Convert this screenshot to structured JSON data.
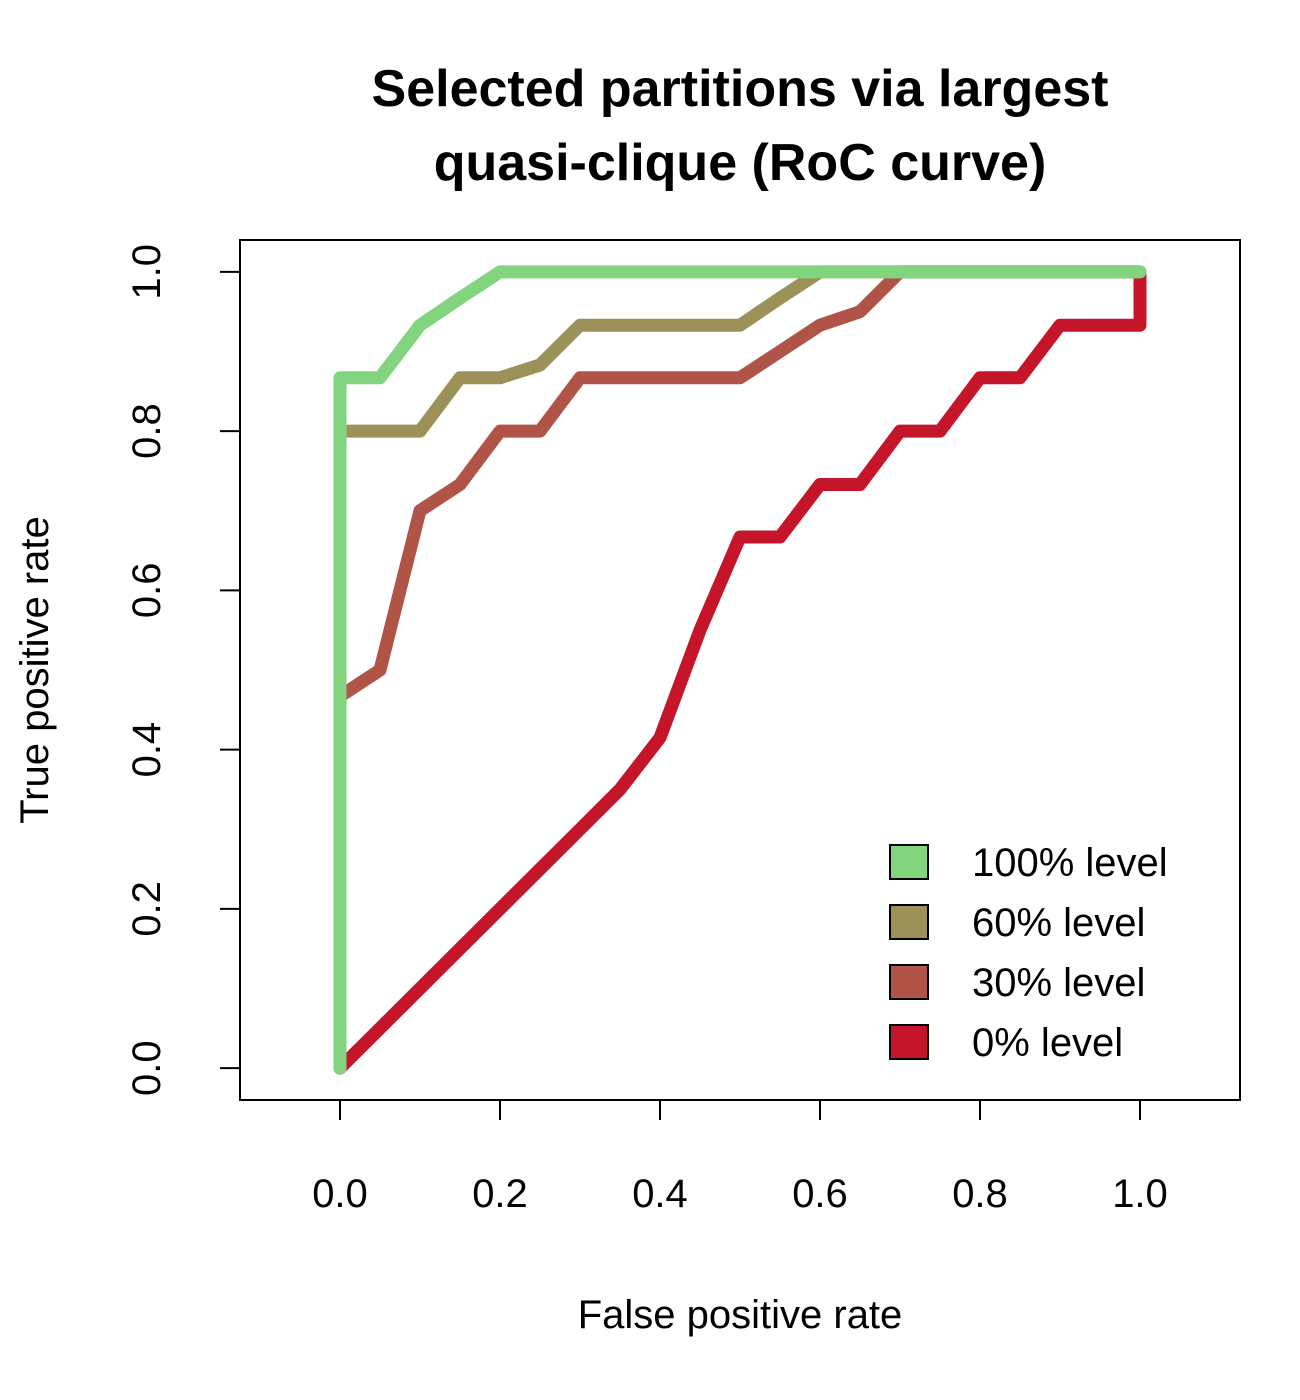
{
  "chart_data": {
    "type": "line",
    "title_lines": [
      "Selected partitions via largest",
      "quasi-clique (RoC curve)"
    ],
    "xlabel": "False positive rate",
    "ylabel": "True positive rate",
    "xlim": [
      -0.125,
      1.125
    ],
    "ylim": [
      -0.04,
      1.04
    ],
    "x_ticks": [
      "0.0",
      "0.2",
      "0.4",
      "0.6",
      "0.8",
      "1.0"
    ],
    "y_ticks": [
      "0.0",
      "0.2",
      "0.4",
      "0.6",
      "0.8",
      "1.0"
    ],
    "grid": false,
    "legend_position": "bottom-right",
    "series": [
      {
        "name": "0% level",
        "color": "#C4152A",
        "points": [
          [
            0,
            0
          ],
          [
            0.1,
            0.1
          ],
          [
            0.2,
            0.2
          ],
          [
            0.3,
            0.3
          ],
          [
            0.35,
            0.35
          ],
          [
            0.4,
            0.415
          ],
          [
            0.45,
            0.55
          ],
          [
            0.5,
            0.667
          ],
          [
            0.55,
            0.667
          ],
          [
            0.6,
            0.733
          ],
          [
            0.65,
            0.733
          ],
          [
            0.7,
            0.8
          ],
          [
            0.75,
            0.8
          ],
          [
            0.8,
            0.867
          ],
          [
            0.85,
            0.867
          ],
          [
            0.9,
            0.933
          ],
          [
            0.95,
            0.933
          ],
          [
            1.0,
            0.933
          ],
          [
            1.0,
            1.0
          ]
        ]
      },
      {
        "name": "30% level",
        "color": "#B05448",
        "points": [
          [
            0,
            0
          ],
          [
            0,
            0.467
          ],
          [
            0.05,
            0.5
          ],
          [
            0.1,
            0.7
          ],
          [
            0.15,
            0.733
          ],
          [
            0.2,
            0.8
          ],
          [
            0.25,
            0.8
          ],
          [
            0.3,
            0.867
          ],
          [
            0.35,
            0.867
          ],
          [
            0.4,
            0.867
          ],
          [
            0.45,
            0.867
          ],
          [
            0.5,
            0.867
          ],
          [
            0.55,
            0.9
          ],
          [
            0.6,
            0.933
          ],
          [
            0.65,
            0.95
          ],
          [
            0.7,
            1.0
          ],
          [
            1.0,
            1.0
          ]
        ]
      },
      {
        "name": "60% level",
        "color": "#9C9158",
        "points": [
          [
            0,
            0
          ],
          [
            0,
            0.8
          ],
          [
            0.05,
            0.8
          ],
          [
            0.1,
            0.8
          ],
          [
            0.15,
            0.867
          ],
          [
            0.2,
            0.867
          ],
          [
            0.25,
            0.883
          ],
          [
            0.3,
            0.933
          ],
          [
            0.35,
            0.933
          ],
          [
            0.4,
            0.933
          ],
          [
            0.45,
            0.933
          ],
          [
            0.5,
            0.933
          ],
          [
            0.55,
            0.967
          ],
          [
            0.6,
            1.0
          ],
          [
            1.0,
            1.0
          ]
        ]
      },
      {
        "name": "100% level",
        "color": "#82D47E",
        "points": [
          [
            0,
            0
          ],
          [
            0,
            0.867
          ],
          [
            0.05,
            0.867
          ],
          [
            0.1,
            0.933
          ],
          [
            0.15,
            0.967
          ],
          [
            0.2,
            1.0
          ],
          [
            1.0,
            1.0
          ]
        ]
      }
    ],
    "legend_order": [
      "100% level",
      "60% level",
      "30% level",
      "0% level"
    ]
  }
}
